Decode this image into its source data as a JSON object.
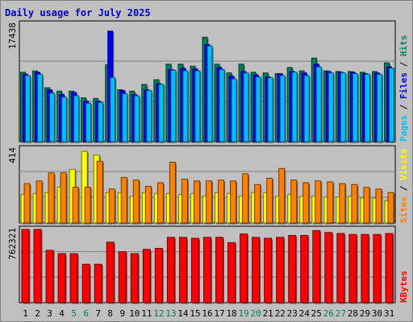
{
  "chart_data": {
    "type": "bar",
    "title": "Daily usage for July 2025",
    "title_color": "#0000cc",
    "categories": [
      "1",
      "2",
      "3",
      "4",
      "5",
      "6",
      "7",
      "8",
      "9",
      "10",
      "11",
      "12",
      "13",
      "14",
      "15",
      "16",
      "17",
      "18",
      "19",
      "20",
      "21",
      "22",
      "23",
      "24",
      "25",
      "26",
      "27",
      "28",
      "29",
      "30",
      "31"
    ],
    "weekend_days": [
      "5",
      "6",
      "12",
      "13",
      "19",
      "20",
      "26",
      "27"
    ],
    "weekend_color": "#007f5f",
    "panels": [
      {
        "name": "hits-files-pages",
        "max_label": "17438",
        "ylim": [
          0,
          17438
        ],
        "side_labels": [
          {
            "text": "Pages",
            "color": "#00bfff"
          },
          {
            "text": "Files",
            "color": "#0000ff"
          },
          {
            "text": "Hits",
            "color": "#00805c"
          }
        ],
        "series": [
          {
            "name": "Hits",
            "color": "#00805c",
            "values": [
              10300,
              10500,
              8000,
              7500,
              7500,
              6500,
              6400,
              11400,
              7700,
              7500,
              8500,
              9200,
              11500,
              11500,
              11200,
              15500,
              11500,
              10200,
              11500,
              10300,
              10200,
              10100,
              11000,
              10500,
              12400,
              10500,
              10400,
              10400,
              10300,
              10400,
              11700
            ]
          },
          {
            "name": "Files",
            "color": "#0000ff",
            "values": [
              10000,
              10300,
              7700,
              7000,
              7300,
              6000,
              6000,
              16400,
              7600,
              7000,
              7700,
              8600,
              10700,
              10900,
              10800,
              14400,
              11000,
              9700,
              10400,
              9900,
              9600,
              10100,
              10400,
              10200,
              11500,
              10400,
              10300,
              10300,
              10100,
              10200,
              11100
            ]
          },
          {
            "name": "Pages",
            "color": "#00bfff",
            "values": [
              9800,
              10000,
              7200,
              6600,
              6800,
              5700,
              5800,
              9500,
              7100,
              6800,
              7600,
              8500,
              10600,
              10500,
              10500,
              14200,
              10700,
              9300,
              10200,
              9600,
              9500,
              9800,
              10300,
              9800,
              11100,
              10200,
              10200,
              10100,
              10000,
              10000,
              10900
            ]
          }
        ]
      },
      {
        "name": "visits-sites",
        "max_label": "414",
        "ylim": [
          0,
          414
        ],
        "side_labels": [
          {
            "text": "Sites",
            "color": "#ff8000"
          },
          {
            "text": "Visits",
            "color": "#ffff00"
          }
        ],
        "series": [
          {
            "name": "Visits",
            "color": "#ffff00",
            "values": [
              160,
              165,
              170,
              200,
              300,
              400,
              380,
              170,
              170,
              150,
              170,
              165,
              165,
              160,
              165,
              150,
              170,
              165,
              150,
              170,
              170,
              150,
              160,
              150,
              150,
              145,
              145,
              150,
              140,
              140,
              125
            ]
          },
          {
            "name": "Sites",
            "color": "#ff8000",
            "values": [
              220,
              235,
              280,
              280,
              200,
              200,
              345,
              190,
              255,
              240,
              205,
              225,
              340,
              245,
              235,
              235,
              240,
              235,
              275,
              215,
              250,
              305,
              240,
              225,
              235,
              230,
              220,
              215,
              200,
              190,
              170
            ]
          }
        ]
      },
      {
        "name": "kbytes",
        "max_label": "762321",
        "ylim": [
          0,
          762321
        ],
        "side_labels": [
          {
            "text": "KBytes",
            "color": "#ff0000"
          }
        ],
        "series": [
          {
            "name": "KBytes",
            "color": "#ff0000",
            "values": [
              762321,
              762321,
              545000,
              510000,
              510000,
              400000,
              400000,
              630000,
              530000,
              510000,
              555000,
              565000,
              680000,
              680000,
              670000,
              680000,
              680000,
              625000,
              715000,
              680000,
              670000,
              680000,
              700000,
              700000,
              750000,
              730000,
              720000,
              710000,
              710000,
              710000,
              720000
            ]
          }
        ]
      }
    ]
  }
}
